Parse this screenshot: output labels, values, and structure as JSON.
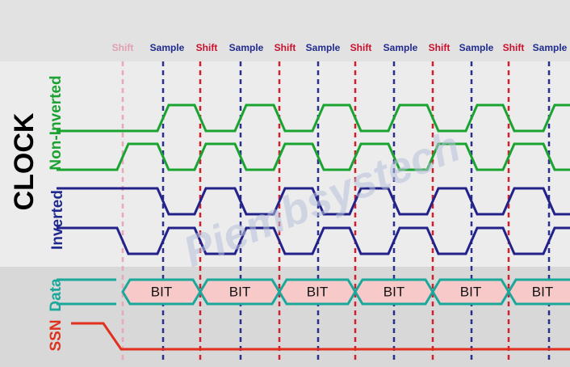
{
  "timing_labels": [
    "Shift",
    "Sample",
    "Shift",
    "Sample",
    "Shift",
    "Sample",
    "Shift",
    "Sample",
    "Shift",
    "Sample",
    "Shift",
    "Sample"
  ],
  "signal_labels": {
    "clock": "CLOCK",
    "non_inverted": "Non-Inverted",
    "inverted": "Inverted",
    "data": "Data",
    "ssn": "SSN"
  },
  "data_cells": [
    "BIT",
    "BIT",
    "BIT",
    "BIT",
    "BIT",
    "BIT"
  ],
  "watermark": "Piembsystech"
}
